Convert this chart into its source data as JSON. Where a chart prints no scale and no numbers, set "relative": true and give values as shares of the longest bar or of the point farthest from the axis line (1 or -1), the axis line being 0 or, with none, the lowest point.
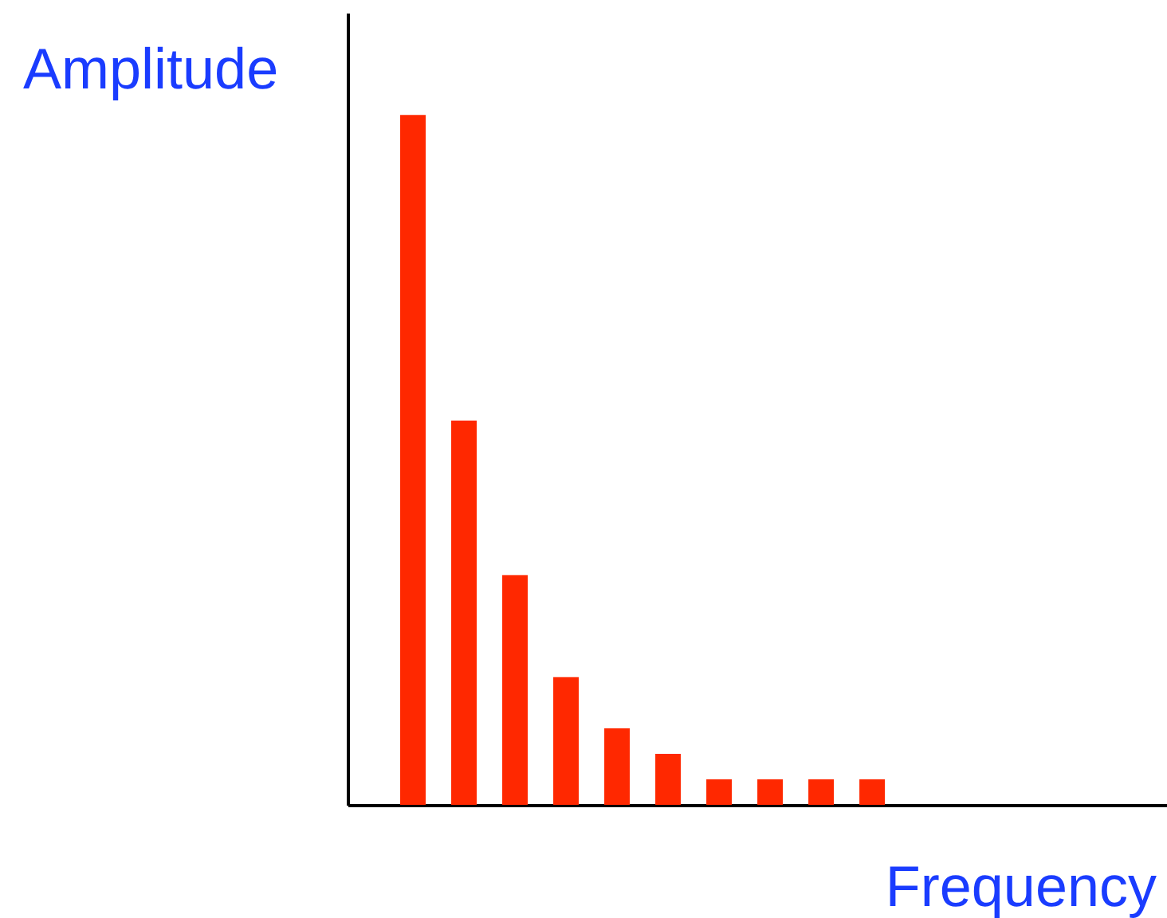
{
  "chart_data": {
    "type": "bar",
    "xlabel": "Frequency",
    "ylabel": "Amplitude",
    "categories": [
      null,
      null,
      null,
      null,
      null,
      null,
      null,
      null,
      null,
      null
    ],
    "values": [
      1,
      0.557,
      0.333,
      0.185,
      0.111,
      0.074,
      0.037,
      0.037,
      0.037,
      0.037
    ],
    "color": "#ff2800",
    "relative": true
  }
}
